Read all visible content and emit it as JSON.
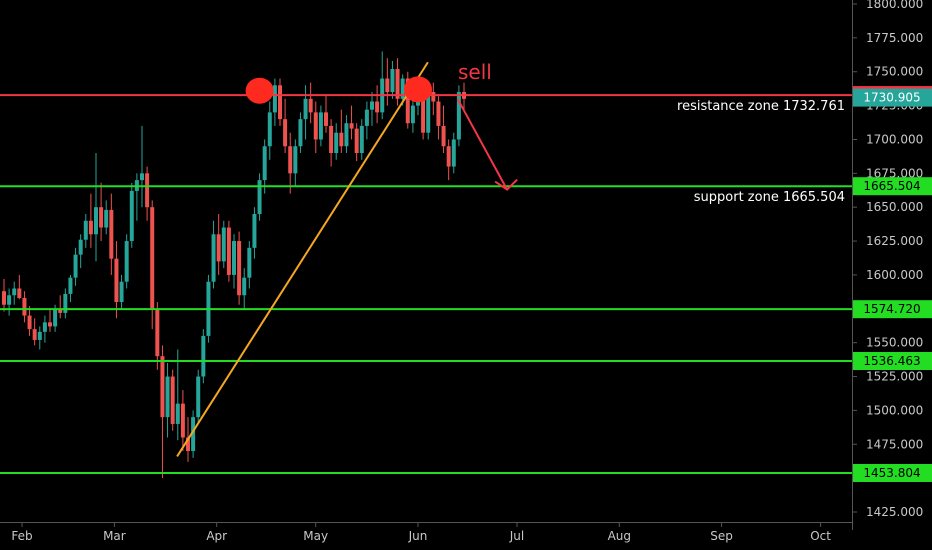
{
  "chart_data": {
    "type": "candlestick",
    "ylim": [
      1420,
      1805
    ],
    "y_ticks": [
      "1800.000",
      "1775.000",
      "1750.000",
      "1725.000",
      "1700.000",
      "1675.000",
      "1650.000",
      "1625.000",
      "1600.000",
      "1575.000",
      "1550.000",
      "1525.000",
      "1500.000",
      "1475.000",
      "1450.000",
      "1425.000"
    ],
    "x_ticks": [
      "Feb",
      "Mar",
      "Apr",
      "May",
      "Jun",
      "Jul",
      "Aug",
      "Sep",
      "Oct"
    ],
    "levels": [
      {
        "value": 1732.761,
        "label": "1732.761",
        "color": "#f23645"
      },
      {
        "value": 1665.504,
        "label": "1665.504",
        "color": "#22dd22"
      },
      {
        "value": 1574.72,
        "label": "1574.720",
        "color": "#22dd22"
      },
      {
        "value": 1536.463,
        "label": "1536.463",
        "color": "#22dd22"
      },
      {
        "value": 1453.804,
        "label": "1453.804",
        "color": "#22dd22"
      }
    ],
    "last_price": {
      "value": 1730.905,
      "label": "1730.905",
      "color": "#26a69a"
    },
    "annotations": {
      "resistance": "resistance zone 1732.761",
      "support": "support zone 1665.504",
      "sell": "sell"
    },
    "trendline": {
      "from": {
        "date": "Mar 20",
        "value": 1466
      },
      "to": {
        "date": "Jun 4",
        "value": 1757
      }
    },
    "peaks": [
      {
        "date": "Apr 14",
        "value": 1736
      },
      {
        "date": "Jun 1",
        "value": 1737
      }
    ],
    "projection": {
      "from": {
        "date": "Jun 13",
        "value": 1730
      },
      "to": {
        "date": "Jun 28",
        "value": 1663
      }
    },
    "candles": [
      [
        1588,
        1597,
        1573,
        1578
      ],
      [
        1578,
        1590,
        1570,
        1585
      ],
      [
        1585,
        1595,
        1578,
        1590
      ],
      [
        1590,
        1600,
        1582,
        1583
      ],
      [
        1583,
        1588,
        1565,
        1570
      ],
      [
        1570,
        1577,
        1555,
        1560
      ],
      [
        1560,
        1568,
        1548,
        1552
      ],
      [
        1552,
        1562,
        1545,
        1558
      ],
      [
        1558,
        1570,
        1550,
        1565
      ],
      [
        1565,
        1575,
        1558,
        1562
      ],
      [
        1562,
        1578,
        1558,
        1575
      ],
      [
        1575,
        1585,
        1568,
        1572
      ],
      [
        1572,
        1590,
        1568,
        1586
      ],
      [
        1586,
        1600,
        1580,
        1598
      ],
      [
        1598,
        1620,
        1592,
        1615
      ],
      [
        1615,
        1630,
        1605,
        1626
      ],
      [
        1626,
        1645,
        1620,
        1640
      ],
      [
        1640,
        1660,
        1620,
        1630
      ],
      [
        1630,
        1690,
        1610,
        1650
      ],
      [
        1650,
        1668,
        1625,
        1635
      ],
      [
        1635,
        1655,
        1630,
        1648
      ],
      [
        1648,
        1660,
        1600,
        1612
      ],
      [
        1612,
        1625,
        1568,
        1580
      ],
      [
        1580,
        1600,
        1575,
        1595
      ],
      [
        1595,
        1630,
        1590,
        1625
      ],
      [
        1625,
        1668,
        1620,
        1662
      ],
      [
        1662,
        1675,
        1640,
        1670
      ],
      [
        1670,
        1710,
        1650,
        1675
      ],
      [
        1675,
        1680,
        1640,
        1650
      ],
      [
        1650,
        1655,
        1560,
        1575
      ],
      [
        1575,
        1580,
        1530,
        1540
      ],
      [
        1540,
        1548,
        1450,
        1495
      ],
      [
        1495,
        1535,
        1480,
        1525
      ],
      [
        1525,
        1530,
        1485,
        1490
      ],
      [
        1490,
        1545,
        1478,
        1505
      ],
      [
        1505,
        1515,
        1470,
        1480
      ],
      [
        1480,
        1495,
        1462,
        1470
      ],
      [
        1470,
        1500,
        1465,
        1495
      ],
      [
        1495,
        1530,
        1490,
        1525
      ],
      [
        1525,
        1560,
        1520,
        1555
      ],
      [
        1555,
        1600,
        1550,
        1595
      ],
      [
        1595,
        1640,
        1590,
        1630
      ],
      [
        1630,
        1645,
        1600,
        1610
      ],
      [
        1610,
        1640,
        1605,
        1635
      ],
      [
        1635,
        1640,
        1595,
        1600
      ],
      [
        1600,
        1630,
        1590,
        1625
      ],
      [
        1625,
        1632,
        1578,
        1585
      ],
      [
        1585,
        1605,
        1575,
        1598
      ],
      [
        1598,
        1625,
        1590,
        1620
      ],
      [
        1620,
        1650,
        1612,
        1645
      ],
      [
        1645,
        1675,
        1640,
        1670
      ],
      [
        1670,
        1700,
        1660,
        1695
      ],
      [
        1695,
        1728,
        1685,
        1720
      ],
      [
        1720,
        1745,
        1710,
        1740
      ],
      [
        1740,
        1745,
        1710,
        1715
      ],
      [
        1715,
        1730,
        1690,
        1695
      ],
      [
        1695,
        1705,
        1660,
        1675
      ],
      [
        1675,
        1700,
        1665,
        1695
      ],
      [
        1695,
        1720,
        1690,
        1715
      ],
      [
        1715,
        1740,
        1700,
        1730
      ],
      [
        1730,
        1742,
        1712,
        1720
      ],
      [
        1720,
        1728,
        1690,
        1700
      ],
      [
        1700,
        1725,
        1695,
        1720
      ],
      [
        1720,
        1732,
        1705,
        1710
      ],
      [
        1710,
        1715,
        1680,
        1690
      ],
      [
        1690,
        1712,
        1685,
        1705
      ],
      [
        1705,
        1722,
        1690,
        1695
      ],
      [
        1695,
        1718,
        1690,
        1712
      ],
      [
        1712,
        1725,
        1700,
        1708
      ],
      [
        1708,
        1712,
        1684,
        1690
      ],
      [
        1690,
        1715,
        1685,
        1710
      ],
      [
        1710,
        1728,
        1700,
        1722
      ],
      [
        1722,
        1735,
        1710,
        1728
      ],
      [
        1728,
        1740,
        1712,
        1720
      ],
      [
        1720,
        1765,
        1715,
        1745
      ],
      [
        1745,
        1760,
        1725,
        1735
      ],
      [
        1735,
        1758,
        1730,
        1752
      ],
      [
        1752,
        1760,
        1725,
        1730
      ],
      [
        1730,
        1748,
        1725,
        1745
      ],
      [
        1745,
        1750,
        1708,
        1712
      ],
      [
        1712,
        1730,
        1705,
        1725
      ],
      [
        1725,
        1745,
        1718,
        1735
      ],
      [
        1735,
        1740,
        1700,
        1705
      ],
      [
        1705,
        1740,
        1700,
        1735
      ],
      [
        1735,
        1742,
        1718,
        1728
      ],
      [
        1728,
        1732,
        1700,
        1710
      ],
      [
        1710,
        1725,
        1690,
        1695
      ],
      [
        1695,
        1700,
        1670,
        1680
      ],
      [
        1680,
        1705,
        1675,
        1700
      ],
      [
        1700,
        1740,
        1695,
        1735
      ],
      [
        1735,
        1742,
        1722,
        1730
      ]
    ]
  }
}
